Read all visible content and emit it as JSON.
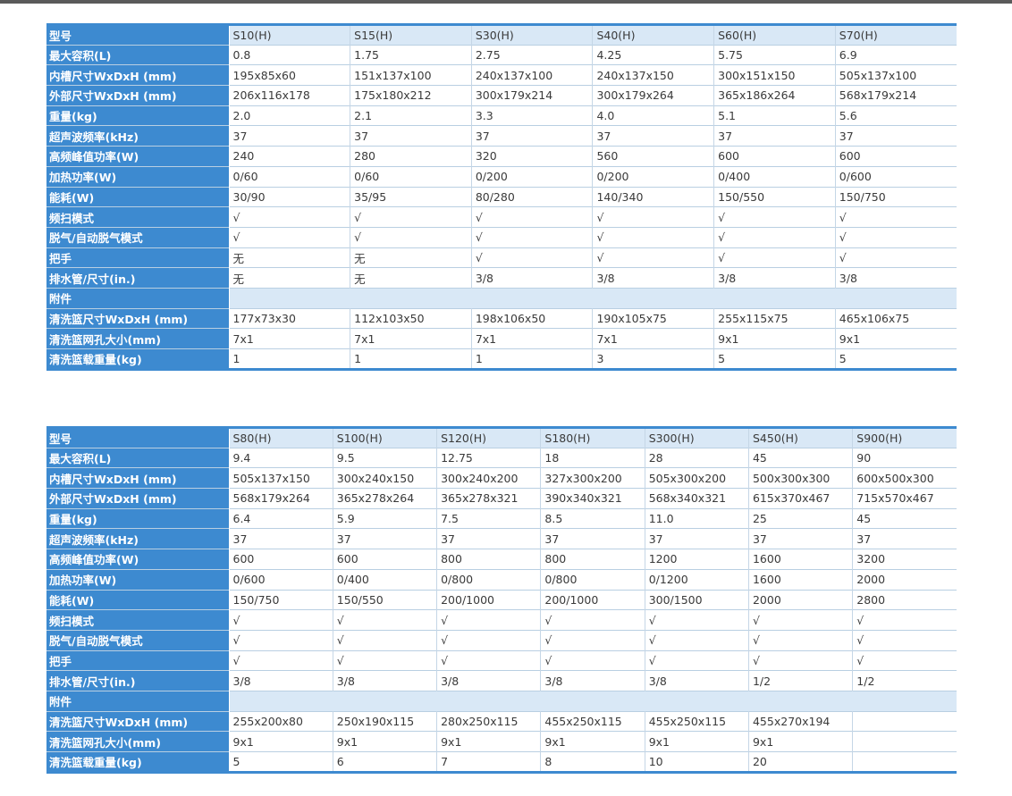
{
  "labels": [
    "型号",
    "最大容积(L)",
    "内槽尺寸WxDxH (mm)",
    "外部尺寸WxDxH (mm)",
    "重量(kg)",
    "超声波频率(kHz)",
    "高频峰值功率(W)",
    "加热功率(W)",
    "能耗(W)",
    "频扫模式",
    "脱气/自动脱气模式",
    "把手",
    "排水管/尺寸(in.)",
    "附件",
    "清洗篮尺寸WxDxH (mm)",
    "清洗篮网孔大小(mm)",
    "清洗篮载重量(kg)"
  ],
  "table1": {
    "models": [
      "S10(H)",
      "S15(H)",
      "S30(H)",
      "S40(H)",
      "S60(H)",
      "S70(H)"
    ],
    "rows": [
      [
        "0.8",
        "1.75",
        "2.75",
        "4.25",
        "5.75",
        "6.9"
      ],
      [
        "195x85x60",
        "151x137x100",
        "240x137x100",
        "240x137x150",
        "300x151x150",
        "505x137x100"
      ],
      [
        "206x116x178",
        "175x180x212",
        "300x179x214",
        "300x179x264",
        "365x186x264",
        "568x179x214"
      ],
      [
        "2.0",
        "2.1",
        "3.3",
        "4.0",
        "5.1",
        "5.6"
      ],
      [
        "37",
        "37",
        "37",
        "37",
        "37",
        "37"
      ],
      [
        "240",
        "280",
        "320",
        "560",
        "600",
        "600"
      ],
      [
        "0/60",
        "0/60",
        "0/200",
        "0/200",
        "0/400",
        "0/600"
      ],
      [
        "30/90",
        "35/95",
        "80/280",
        "140/340",
        "150/550",
        "150/750"
      ],
      [
        "√",
        "√",
        "√",
        "√",
        "√",
        "√"
      ],
      [
        "√",
        "√",
        "√",
        "√",
        "√",
        "√"
      ],
      [
        "无",
        "无",
        "√",
        "√",
        "√",
        "√"
      ],
      [
        "无",
        "无",
        "3/8",
        "3/8",
        "3/8",
        "3/8"
      ],
      [
        "",
        "",
        "",
        "",
        "",
        ""
      ],
      [
        "177x73x30",
        "112x103x50",
        "198x106x50",
        "190x105x75",
        "255x115x75",
        "465x106x75"
      ],
      [
        "7x1",
        "7x1",
        "7x1",
        "7x1",
        "9x1",
        "9x1"
      ],
      [
        "1",
        "1",
        "1",
        "3",
        "5",
        "5"
      ]
    ]
  },
  "table2": {
    "models": [
      "S80(H)",
      "S100(H)",
      "S120(H)",
      "S180(H)",
      "S300(H)",
      "S450(H)",
      "S900(H)"
    ],
    "rows": [
      [
        "9.4",
        "9.5",
        "12.75",
        "18",
        "28",
        "45",
        "90"
      ],
      [
        "505x137x150",
        "300x240x150",
        "300x240x200",
        "327x300x200",
        "505x300x200",
        "500x300x300",
        "600x500x300"
      ],
      [
        "568x179x264",
        "365x278x264",
        "365x278x321",
        "390x340x321",
        "568x340x321",
        "615x370x467",
        "715x570x467"
      ],
      [
        "6.4",
        "5.9",
        "7.5",
        "8.5",
        "11.0",
        "25",
        "45"
      ],
      [
        "37",
        "37",
        "37",
        "37",
        "37",
        "37",
        "37"
      ],
      [
        "600",
        "600",
        "800",
        "800",
        "1200",
        "1600",
        "3200"
      ],
      [
        "0/600",
        "0/400",
        "0/800",
        "0/800",
        "0/1200",
        "1600",
        "2000"
      ],
      [
        "150/750",
        "150/550",
        "200/1000",
        "200/1000",
        "300/1500",
        "2000",
        "2800"
      ],
      [
        "√",
        "√",
        "√",
        "√",
        "√",
        "√",
        "√"
      ],
      [
        "√",
        "√",
        "√",
        "√",
        "√",
        "√",
        "√"
      ],
      [
        "√",
        "√",
        "√",
        "√",
        "√",
        "√",
        "√"
      ],
      [
        "3/8",
        "3/8",
        "3/8",
        "3/8",
        "3/8",
        "1/2",
        "1/2"
      ],
      [
        "",
        "",
        "",
        "",
        "",
        "",
        ""
      ],
      [
        "255x200x80",
        "250x190x115",
        "280x250x115",
        "455x250x115",
        "455x250x115",
        "455x270x194",
        ""
      ],
      [
        "9x1",
        "9x1",
        "9x1",
        "9x1",
        "9x1",
        "9x1",
        ""
      ],
      [
        "5",
        "6",
        "7",
        "8",
        "10",
        "20",
        ""
      ]
    ]
  }
}
